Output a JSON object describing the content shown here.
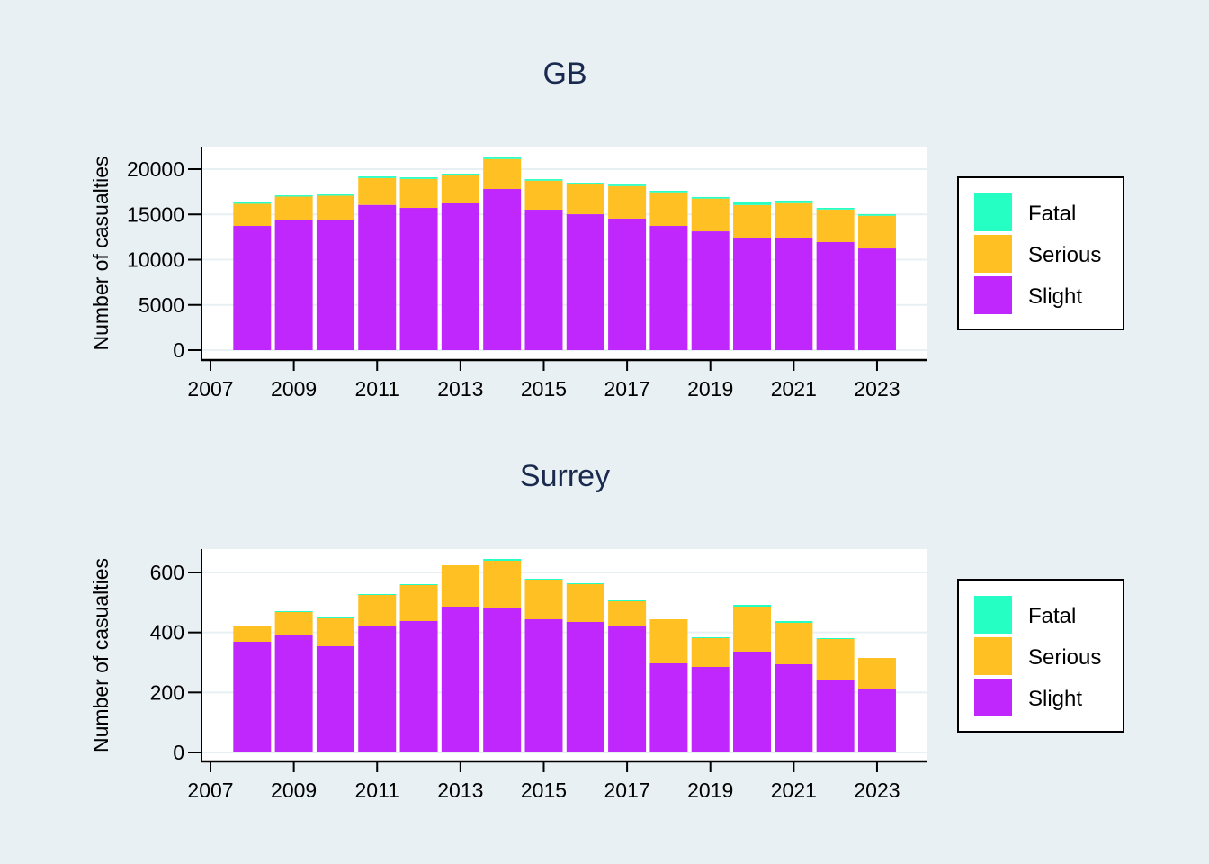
{
  "chart_data": [
    {
      "type": "bar",
      "stacked": true,
      "title": "GB",
      "xlabel": "",
      "ylabel": "Number of casualties",
      "x": [
        2008,
        2009,
        2010,
        2011,
        2012,
        2013,
        2014,
        2015,
        2016,
        2017,
        2018,
        2019,
        2020,
        2021,
        2022,
        2023
      ],
      "xlim": [
        2007,
        2024
      ],
      "xticks": [
        "2007",
        "2009",
        "2011",
        "2013",
        "2015",
        "2017",
        "2019",
        "2021",
        "2023"
      ],
      "ylim": [
        0,
        22500
      ],
      "yticks": [
        "0",
        "5000",
        "10000",
        "15000",
        "20000"
      ],
      "grid": true,
      "legend_position": "right",
      "series": [
        {
          "name": "Slight",
          "color": "#c027fd",
          "values": [
            13730,
            14330,
            14430,
            16050,
            15720,
            16220,
            17810,
            15520,
            15020,
            14530,
            13730,
            13130,
            12340,
            12440,
            11940,
            11240
          ]
        },
        {
          "name": "Serious",
          "color": "#ffc024",
          "values": [
            2450,
            2640,
            2640,
            2970,
            3200,
            3080,
            3310,
            3210,
            3310,
            3600,
            3710,
            3620,
            3700,
            3800,
            3600,
            3610
          ]
        },
        {
          "name": "Fatal",
          "color": "#26ffc4",
          "values": [
            140,
            140,
            140,
            180,
            180,
            200,
            170,
            170,
            170,
            170,
            170,
            170,
            280,
            280,
            180,
            170
          ]
        }
      ]
    },
    {
      "type": "bar",
      "stacked": true,
      "title": "Surrey",
      "xlabel": "",
      "ylabel": "Number of casualties",
      "x": [
        2008,
        2009,
        2010,
        2011,
        2012,
        2013,
        2014,
        2015,
        2016,
        2017,
        2018,
        2019,
        2020,
        2021,
        2022,
        2023
      ],
      "xlim": [
        2007,
        2024
      ],
      "xticks": [
        "2007",
        "2009",
        "2011",
        "2013",
        "2015",
        "2017",
        "2019",
        "2021",
        "2023"
      ],
      "ylim": [
        0,
        675
      ],
      "yticks": [
        "0",
        "200",
        "400",
        "600"
      ],
      "grid": true,
      "legend_position": "right",
      "series": [
        {
          "name": "Slight",
          "color": "#c027fd",
          "values": [
            369,
            390,
            354,
            420,
            438,
            486,
            480,
            444,
            435,
            420,
            297,
            285,
            336,
            294,
            243,
            213
          ]
        },
        {
          "name": "Serious",
          "color": "#ffc024",
          "values": [
            51,
            78,
            93,
            105,
            120,
            138,
            159,
            132,
            126,
            84,
            147,
            96,
            150,
            138,
            135,
            102
          ]
        },
        {
          "name": "Fatal",
          "color": "#26ffc4",
          "values": [
            0,
            3,
            3,
            3,
            3,
            0,
            6,
            3,
            3,
            3,
            0,
            3,
            6,
            6,
            3,
            0
          ]
        }
      ]
    }
  ],
  "legend": {
    "items": [
      {
        "label": "Fatal",
        "color": "#26ffc4"
      },
      {
        "label": "Serious",
        "color": "#ffc024"
      },
      {
        "label": "Slight",
        "color": "#c027fd"
      }
    ]
  }
}
